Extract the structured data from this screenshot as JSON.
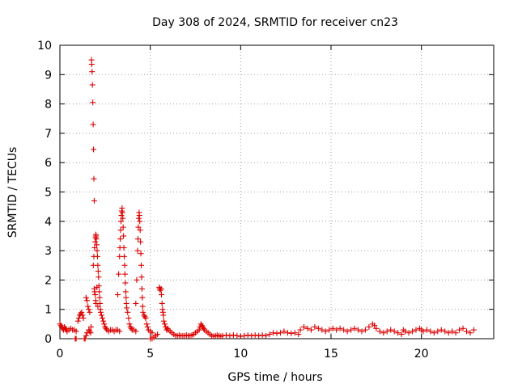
{
  "chart_data": {
    "type": "scatter",
    "title": "Day 308 of 2024, SRMTID for receiver cn23",
    "xlabel": "GPS time / hours",
    "ylabel": "SRMTID / TECUs",
    "xlim": [
      0,
      24
    ],
    "ylim": [
      0,
      10
    ],
    "xticks": [
      0,
      5,
      10,
      15,
      20
    ],
    "yticks": [
      0,
      1,
      2,
      3,
      4,
      5,
      6,
      7,
      8,
      9,
      10
    ],
    "grid": true,
    "marker": "+",
    "color": "#dd0000",
    "series": [
      {
        "name": "cn23",
        "points": [
          [
            0.0,
            0.5
          ],
          [
            0.05,
            0.45
          ],
          [
            0.1,
            0.4
          ],
          [
            0.15,
            0.35
          ],
          [
            0.2,
            0.3
          ],
          [
            0.25,
            0.4
          ],
          [
            0.3,
            0.35
          ],
          [
            0.35,
            0.3
          ],
          [
            0.4,
            0.25
          ],
          [
            0.5,
            0.3
          ],
          [
            0.6,
            0.35
          ],
          [
            0.7,
            0.3
          ],
          [
            0.8,
            0.3
          ],
          [
            0.9,
            0.25
          ],
          [
            0.85,
            0.0
          ],
          [
            0.9,
            0.0
          ],
          [
            1.0,
            0.6
          ],
          [
            1.05,
            0.7
          ],
          [
            1.1,
            0.8
          ],
          [
            1.15,
            0.85
          ],
          [
            1.2,
            0.9
          ],
          [
            1.25,
            0.8
          ],
          [
            1.3,
            0.7
          ],
          [
            1.35,
            0.0
          ],
          [
            1.4,
            0.0
          ],
          [
            1.45,
            0.1
          ],
          [
            1.5,
            0.2
          ],
          [
            1.45,
            1.4
          ],
          [
            1.5,
            1.3
          ],
          [
            1.55,
            1.1
          ],
          [
            1.6,
            1.0
          ],
          [
            1.65,
            0.9
          ],
          [
            1.6,
            0.3
          ],
          [
            1.65,
            0.25
          ],
          [
            1.7,
            0.2
          ],
          [
            1.72,
            0.4
          ],
          [
            1.75,
            9.5
          ],
          [
            1.76,
            9.35
          ],
          [
            1.78,
            9.1
          ],
          [
            1.8,
            8.65
          ],
          [
            1.82,
            8.05
          ],
          [
            1.84,
            7.3
          ],
          [
            1.86,
            6.45
          ],
          [
            1.88,
            5.45
          ],
          [
            1.9,
            4.7
          ],
          [
            1.85,
            2.5
          ],
          [
            1.88,
            2.8
          ],
          [
            1.92,
            3.1
          ],
          [
            1.95,
            3.3
          ],
          [
            1.97,
            3.45
          ],
          [
            1.99,
            3.55
          ],
          [
            2.0,
            3.5
          ],
          [
            2.02,
            3.4
          ],
          [
            2.04,
            3.2
          ],
          [
            2.06,
            3.0
          ],
          [
            2.08,
            2.8
          ],
          [
            2.1,
            2.5
          ],
          [
            2.12,
            2.3
          ],
          [
            2.14,
            2.1
          ],
          [
            2.16,
            1.8
          ],
          [
            2.18,
            1.6
          ],
          [
            2.2,
            1.4
          ],
          [
            2.22,
            1.2
          ],
          [
            2.24,
            1.0
          ],
          [
            2.26,
            0.9
          ],
          [
            2.3,
            0.8
          ],
          [
            2.35,
            0.7
          ],
          [
            2.4,
            0.6
          ],
          [
            2.45,
            0.5
          ],
          [
            2.5,
            0.4
          ],
          [
            2.55,
            0.35
          ],
          [
            2.6,
            0.3
          ],
          [
            1.9,
            1.7
          ],
          [
            1.92,
            1.6
          ],
          [
            1.95,
            1.5
          ],
          [
            1.98,
            1.3
          ],
          [
            2.0,
            1.2
          ],
          [
            2.05,
            1.75
          ],
          [
            2.1,
            1.1
          ],
          [
            2.7,
            0.25
          ],
          [
            2.8,
            0.3
          ],
          [
            2.9,
            0.3
          ],
          [
            3.0,
            0.25
          ],
          [
            3.1,
            0.3
          ],
          [
            3.2,
            0.3
          ],
          [
            3.3,
            0.25
          ],
          [
            3.2,
            1.5
          ],
          [
            3.25,
            2.2
          ],
          [
            3.3,
            2.8
          ],
          [
            3.32,
            3.1
          ],
          [
            3.34,
            3.4
          ],
          [
            3.36,
            3.7
          ],
          [
            3.38,
            4.0
          ],
          [
            3.4,
            4.2
          ],
          [
            3.42,
            4.35
          ],
          [
            3.44,
            4.45
          ],
          [
            3.46,
            4.3
          ],
          [
            3.48,
            4.1
          ],
          [
            3.5,
            3.8
          ],
          [
            3.52,
            3.5
          ],
          [
            3.54,
            3.1
          ],
          [
            3.56,
            2.8
          ],
          [
            3.58,
            2.5
          ],
          [
            3.6,
            2.2
          ],
          [
            3.62,
            1.9
          ],
          [
            3.64,
            1.6
          ],
          [
            3.66,
            1.4
          ],
          [
            3.68,
            1.2
          ],
          [
            3.7,
            1.05
          ],
          [
            3.75,
            0.9
          ],
          [
            3.8,
            0.7
          ],
          [
            3.85,
            0.5
          ],
          [
            3.9,
            0.4
          ],
          [
            3.95,
            0.35
          ],
          [
            4.0,
            0.3
          ],
          [
            4.1,
            0.3
          ],
          [
            4.2,
            0.25
          ],
          [
            4.2,
            1.2
          ],
          [
            4.25,
            2.0
          ],
          [
            4.3,
            3.0
          ],
          [
            4.32,
            3.4
          ],
          [
            4.34,
            3.8
          ],
          [
            4.36,
            4.1
          ],
          [
            4.38,
            4.3
          ],
          [
            4.4,
            4.2
          ],
          [
            4.42,
            4.0
          ],
          [
            4.44,
            3.7
          ],
          [
            4.46,
            3.3
          ],
          [
            4.48,
            2.9
          ],
          [
            4.5,
            2.5
          ],
          [
            4.52,
            2.1
          ],
          [
            4.54,
            1.7
          ],
          [
            4.56,
            1.4
          ],
          [
            4.58,
            1.1
          ],
          [
            4.6,
            0.9
          ],
          [
            4.65,
            0.8
          ],
          [
            4.7,
            0.75
          ],
          [
            4.75,
            0.7
          ],
          [
            4.8,
            0.5
          ],
          [
            4.85,
            0.4
          ],
          [
            4.9,
            0.3
          ],
          [
            5.0,
            0.25
          ],
          [
            5.1,
            0.2
          ],
          [
            5.0,
            0.0
          ],
          [
            5.1,
            0.0
          ],
          [
            5.2,
            0.05
          ],
          [
            5.3,
            0.1
          ],
          [
            5.4,
            0.15
          ],
          [
            5.5,
            1.75
          ],
          [
            5.52,
            1.7
          ],
          [
            5.55,
            1.65
          ],
          [
            5.6,
            1.7
          ],
          [
            5.62,
            1.5
          ],
          [
            5.65,
            1.2
          ],
          [
            5.68,
            1.0
          ],
          [
            5.7,
            0.9
          ],
          [
            5.72,
            0.8
          ],
          [
            5.75,
            0.6
          ],
          [
            5.8,
            0.5
          ],
          [
            5.85,
            0.4
          ],
          [
            5.9,
            0.3
          ],
          [
            5.95,
            0.35
          ],
          [
            6.0,
            0.3
          ],
          [
            6.1,
            0.25
          ],
          [
            6.2,
            0.2
          ],
          [
            6.3,
            0.15
          ],
          [
            6.4,
            0.1
          ],
          [
            6.5,
            0.1
          ],
          [
            6.6,
            0.12
          ],
          [
            6.7,
            0.1
          ],
          [
            6.8,
            0.1
          ],
          [
            6.9,
            0.1
          ],
          [
            7.0,
            0.12
          ],
          [
            7.1,
            0.1
          ],
          [
            7.2,
            0.1
          ],
          [
            7.3,
            0.12
          ],
          [
            7.4,
            0.15
          ],
          [
            7.5,
            0.2
          ],
          [
            7.6,
            0.25
          ],
          [
            7.7,
            0.3
          ],
          [
            7.75,
            0.4
          ],
          [
            7.8,
            0.5
          ],
          [
            7.85,
            0.45
          ],
          [
            7.9,
            0.4
          ],
          [
            7.95,
            0.35
          ],
          [
            8.0,
            0.3
          ],
          [
            8.1,
            0.25
          ],
          [
            8.2,
            0.2
          ],
          [
            8.3,
            0.15
          ],
          [
            8.4,
            0.1
          ],
          [
            8.5,
            0.08
          ],
          [
            8.6,
            0.1
          ],
          [
            8.7,
            0.12
          ],
          [
            8.8,
            0.1
          ],
          [
            8.9,
            0.08
          ],
          [
            9.0,
            0.1
          ],
          [
            9.2,
            0.12
          ],
          [
            9.4,
            0.1
          ],
          [
            9.6,
            0.12
          ],
          [
            9.8,
            0.1
          ],
          [
            10.0,
            0.08
          ],
          [
            10.2,
            0.1
          ],
          [
            10.4,
            0.12
          ],
          [
            10.6,
            0.1
          ],
          [
            10.8,
            0.12
          ],
          [
            11.0,
            0.1
          ],
          [
            11.2,
            0.12
          ],
          [
            11.4,
            0.1
          ],
          [
            11.6,
            0.15
          ],
          [
            11.8,
            0.2
          ],
          [
            12.0,
            0.18
          ],
          [
            12.2,
            0.2
          ],
          [
            12.4,
            0.25
          ],
          [
            12.6,
            0.2
          ],
          [
            12.8,
            0.18
          ],
          [
            13.0,
            0.2
          ],
          [
            13.2,
            0.15
          ],
          [
            13.3,
            0.3
          ],
          [
            13.5,
            0.4
          ],
          [
            13.7,
            0.35
          ],
          [
            13.9,
            0.3
          ],
          [
            14.1,
            0.4
          ],
          [
            14.3,
            0.35
          ],
          [
            14.5,
            0.3
          ],
          [
            14.7,
            0.25
          ],
          [
            14.9,
            0.3
          ],
          [
            15.1,
            0.35
          ],
          [
            15.3,
            0.3
          ],
          [
            15.5,
            0.35
          ],
          [
            15.7,
            0.3
          ],
          [
            15.9,
            0.25
          ],
          [
            16.1,
            0.3
          ],
          [
            16.3,
            0.35
          ],
          [
            16.5,
            0.3
          ],
          [
            16.7,
            0.25
          ],
          [
            16.9,
            0.3
          ],
          [
            17.1,
            0.4
          ],
          [
            17.3,
            0.5
          ],
          [
            17.4,
            0.45
          ],
          [
            17.5,
            0.35
          ],
          [
            17.7,
            0.25
          ],
          [
            17.9,
            0.2
          ],
          [
            18.1,
            0.25
          ],
          [
            18.3,
            0.3
          ],
          [
            18.5,
            0.25
          ],
          [
            18.7,
            0.2
          ],
          [
            18.9,
            0.15
          ],
          [
            19.0,
            0.3
          ],
          [
            19.1,
            0.25
          ],
          [
            19.3,
            0.2
          ],
          [
            19.5,
            0.25
          ],
          [
            19.7,
            0.3
          ],
          [
            19.9,
            0.35
          ],
          [
            20.0,
            0.3
          ],
          [
            20.1,
            0.25
          ],
          [
            20.3,
            0.3
          ],
          [
            20.5,
            0.25
          ],
          [
            20.7,
            0.2
          ],
          [
            20.9,
            0.25
          ],
          [
            21.1,
            0.3
          ],
          [
            21.3,
            0.25
          ],
          [
            21.5,
            0.2
          ],
          [
            21.7,
            0.25
          ],
          [
            21.9,
            0.2
          ],
          [
            22.1,
            0.3
          ],
          [
            22.3,
            0.35
          ],
          [
            22.5,
            0.25
          ],
          [
            22.7,
            0.2
          ],
          [
            22.9,
            0.3
          ]
        ]
      }
    ]
  }
}
